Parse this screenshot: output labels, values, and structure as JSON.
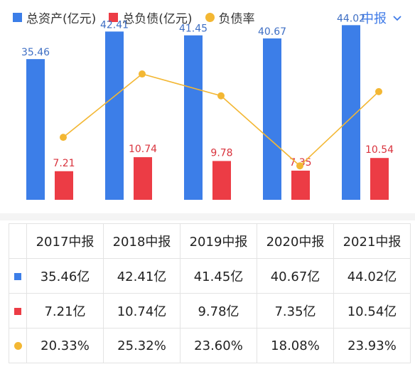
{
  "legend": {
    "assets_label": "总资产(亿元)",
    "liabilities_label": "总负债(亿元)",
    "ratio_label": "负债率"
  },
  "period_selector": {
    "label": "中报"
  },
  "colors": {
    "assets": "#3c7ee8",
    "liabilities": "#ec3c45",
    "ratio": "#f3b733"
  },
  "chart_data": {
    "type": "bar",
    "categories": [
      "2017中报",
      "2018中报",
      "2019中报",
      "2020中报",
      "2021中报"
    ],
    "series": [
      {
        "name": "总资产(亿元)",
        "type": "bar",
        "values": [
          35.46,
          42.41,
          41.45,
          40.67,
          44.02
        ],
        "labels": [
          "35.46",
          "42.41",
          "41.45",
          "40.67",
          "44.02"
        ]
      },
      {
        "name": "总负债(亿元)",
        "type": "bar",
        "values": [
          7.21,
          10.74,
          9.78,
          7.35,
          10.54
        ],
        "labels": [
          "7.21",
          "10.74",
          "9.78",
          "7.35",
          "10.54"
        ]
      },
      {
        "name": "负债率",
        "type": "line",
        "unit": "%",
        "values": [
          20.33,
          25.32,
          23.6,
          18.08,
          23.93
        ]
      }
    ],
    "grid": false,
    "legend_position": "top-left"
  },
  "table": {
    "headers": [
      "2017中报",
      "2018中报",
      "2019中报",
      "2020中报",
      "2021中报"
    ],
    "rows": [
      [
        "35.46亿",
        "42.41亿",
        "41.45亿",
        "40.67亿",
        "44.02亿"
      ],
      [
        "7.21亿",
        "10.74亿",
        "9.78亿",
        "7.35亿",
        "10.54亿"
      ],
      [
        "20.33%",
        "25.32%",
        "23.60%",
        "18.08%",
        "23.93%"
      ]
    ]
  }
}
